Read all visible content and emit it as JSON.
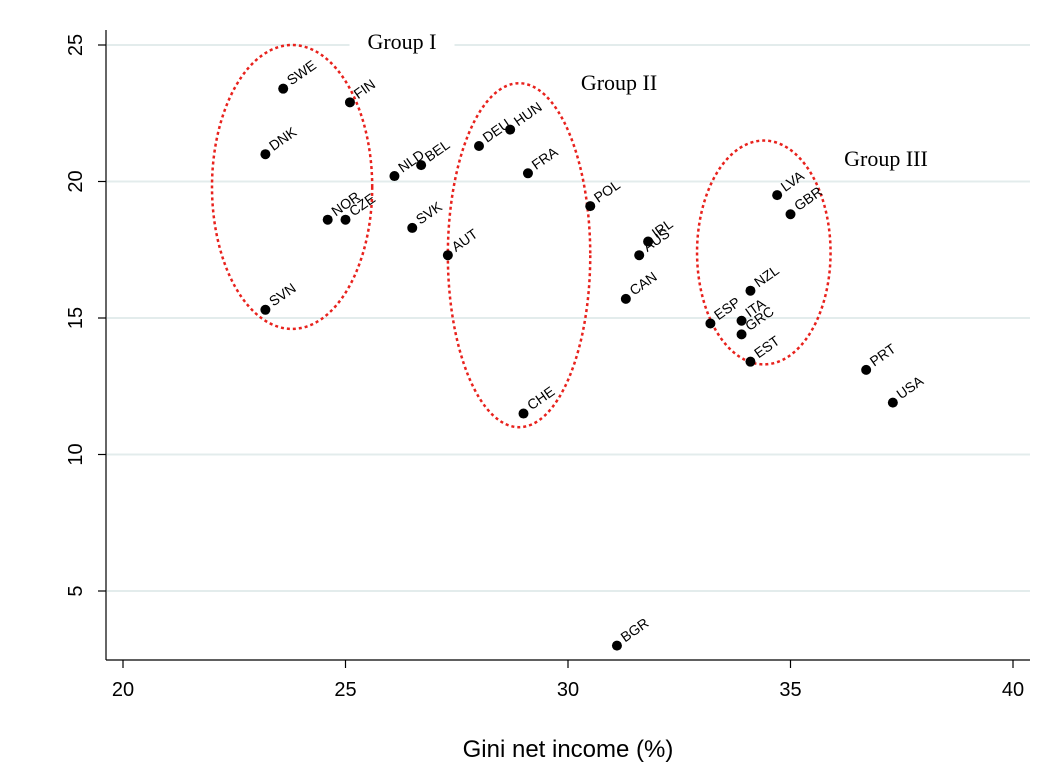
{
  "chart_data": {
    "type": "scatter",
    "title": "",
    "xlabel": "Gini net income (%)",
    "ylabel": "",
    "xlim": [
      19.6,
      40.4
    ],
    "ylim": [
      2.2,
      26.2
    ],
    "xticks": [
      20,
      25,
      30,
      35,
      40
    ],
    "yticks": [
      5,
      10,
      15,
      20,
      25
    ],
    "grid": "horizontal",
    "legend": "none",
    "colors": {
      "points": "#000000",
      "ellipses": "#e8221d",
      "grid": "#e3ecec"
    },
    "points": [
      {
        "label": "SWE",
        "x": 23.6,
        "y": 23.4
      },
      {
        "label": "FIN",
        "x": 25.1,
        "y": 22.9
      },
      {
        "label": "DNK",
        "x": 23.2,
        "y": 21.0
      },
      {
        "label": "NLD",
        "x": 26.1,
        "y": 20.2
      },
      {
        "label": "BEL",
        "x": 26.7,
        "y": 20.6
      },
      {
        "label": "NOR",
        "x": 24.6,
        "y": 18.6
      },
      {
        "label": "CZE",
        "x": 25.0,
        "y": 18.6
      },
      {
        "label": "SVK",
        "x": 26.5,
        "y": 18.3
      },
      {
        "label": "SVN",
        "x": 23.2,
        "y": 15.3
      },
      {
        "label": "DEU",
        "x": 28.0,
        "y": 21.3
      },
      {
        "label": "HUN",
        "x": 28.7,
        "y": 21.9
      },
      {
        "label": "FRA",
        "x": 29.1,
        "y": 20.3
      },
      {
        "label": "AUT",
        "x": 27.3,
        "y": 17.3
      },
      {
        "label": "CHE",
        "x": 29.0,
        "y": 11.5
      },
      {
        "label": "POL",
        "x": 30.5,
        "y": 19.1
      },
      {
        "label": "IRL",
        "x": 31.8,
        "y": 17.8
      },
      {
        "label": "AUS",
        "x": 31.6,
        "y": 17.3
      },
      {
        "label": "CAN",
        "x": 31.3,
        "y": 15.7
      },
      {
        "label": "BGR",
        "x": 31.1,
        "y": 3.0
      },
      {
        "label": "ESP",
        "x": 33.2,
        "y": 14.8
      },
      {
        "label": "ITA",
        "x": 33.9,
        "y": 14.9
      },
      {
        "label": "GRC",
        "x": 33.9,
        "y": 14.4
      },
      {
        "label": "NZL",
        "x": 34.1,
        "y": 16.0
      },
      {
        "label": "EST",
        "x": 34.1,
        "y": 13.4
      },
      {
        "label": "LVA",
        "x": 34.7,
        "y": 19.5
      },
      {
        "label": "GBR",
        "x": 35.0,
        "y": 18.8
      },
      {
        "label": "PRT",
        "x": 36.7,
        "y": 13.1
      },
      {
        "label": "USA",
        "x": 37.3,
        "y": 11.9
      }
    ],
    "groups": [
      {
        "label": "Group I",
        "center": [
          23.8,
          19.8
        ],
        "radius_x": 1.8,
        "radius_y": 5.2
      },
      {
        "label": "Group II",
        "center": [
          28.9,
          17.3
        ],
        "radius_x": 1.6,
        "radius_y": 6.3
      },
      {
        "label": "Group III",
        "center": [
          34.4,
          17.4
        ],
        "radius_x": 1.5,
        "radius_y": 4.1
      }
    ]
  }
}
